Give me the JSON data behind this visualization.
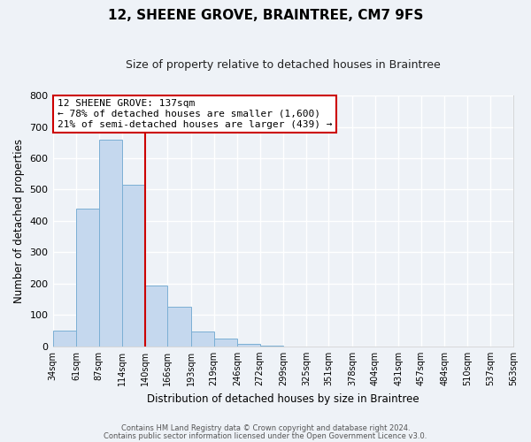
{
  "title": "12, SHEENE GROVE, BRAINTREE, CM7 9FS",
  "subtitle": "Size of property relative to detached houses in Braintree",
  "xlabel": "Distribution of detached houses by size in Braintree",
  "ylabel": "Number of detached properties",
  "bar_edges": [
    34,
    61,
    87,
    114,
    140,
    166,
    193,
    219,
    246,
    272,
    299,
    325,
    351,
    378,
    404,
    431,
    457,
    484,
    510,
    537,
    563
  ],
  "bar_heights": [
    50,
    440,
    660,
    515,
    193,
    127,
    48,
    25,
    7,
    2,
    0,
    0,
    0,
    0,
    0,
    0,
    0,
    0,
    0,
    0
  ],
  "bar_color": "#c5d8ee",
  "bar_edgecolor": "#7bafd4",
  "property_line_x": 140,
  "ylim": [
    0,
    800
  ],
  "yticks": [
    0,
    100,
    200,
    300,
    400,
    500,
    600,
    700,
    800
  ],
  "annotation_title": "12 SHEENE GROVE: 137sqm",
  "annotation_line1": "← 78% of detached houses are smaller (1,600)",
  "annotation_line2": "21% of semi-detached houses are larger (439) →",
  "box_edgecolor": "#cc0000",
  "footer1": "Contains HM Land Registry data © Crown copyright and database right 2024.",
  "footer2": "Contains public sector information licensed under the Open Government Licence v3.0.",
  "background_color": "#eef2f7",
  "grid_color": "#ffffff",
  "spine_color": "#cccccc"
}
